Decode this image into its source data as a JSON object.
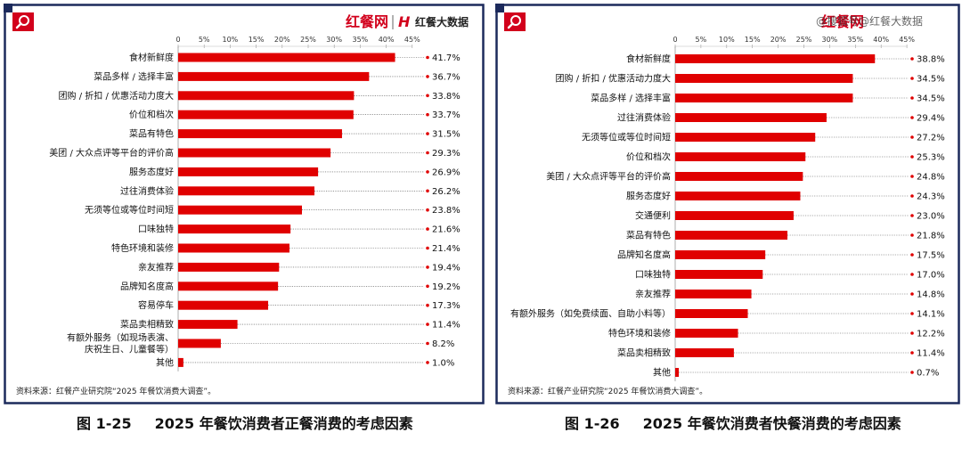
{
  "brand": {
    "logo_text": "红餐网",
    "logo_text2": "红餐大数据",
    "watermark": "@搜狐号@红餐大数据",
    "accent": "#d2001c",
    "frame": "#1c2a5c"
  },
  "captions": [
    {
      "figure": "图 1-25",
      "title": "2025 年餐饮消费者正餐消费的考虑因素"
    },
    {
      "figure": "图 1-26",
      "title": "2025 年餐饮消费者快餐消费的考虑因素"
    }
  ],
  "chart_data": [
    {
      "type": "bar",
      "orientation": "horizontal",
      "categories": [
        "食材新鲜度",
        "菜品多样 / 选择丰富",
        "团购 / 折扣 / 优惠活动力度大",
        "价位和档次",
        "菜品有特色",
        "美团 / 大众点评等平台的评价高",
        "服务态度好",
        "过往消费体验",
        "无须等位或等位时间短",
        "口味独特",
        "特色环境和装修",
        "亲友推荐",
        "品牌知名度高",
        "容易停车",
        "菜品卖相精致",
        [
          "有额外服务（如现场表演、",
          "庆祝生日、儿童餐等）"
        ],
        "其他"
      ],
      "values": [
        41.7,
        36.7,
        33.8,
        33.7,
        31.5,
        29.3,
        26.9,
        26.2,
        23.8,
        21.6,
        21.4,
        19.4,
        19.2,
        17.3,
        11.4,
        8.2,
        1.0
      ],
      "value_labels": [
        "41.7%",
        "36.7%",
        "33.8%",
        "33.7%",
        "31.5%",
        "29.3%",
        "26.9%",
        "26.2%",
        "23.8%",
        "21.6%",
        "21.4%",
        "19.4%",
        "19.2%",
        "17.3%",
        "11.4%",
        "8.2%",
        "1.0%"
      ],
      "xticks": [
        "0",
        "5%",
        "10%",
        "15%",
        "20%",
        "25%",
        "30%",
        "35%",
        "40%",
        "45%"
      ],
      "xlim": [
        0,
        45
      ],
      "axis_position": "top",
      "bar_color": "#e00000",
      "source": "资料来源：红餐产业研究院“2025 年餐饮消费大调查”。"
    },
    {
      "type": "bar",
      "orientation": "horizontal",
      "categories": [
        "食材新鲜度",
        "团购 / 折扣 / 优惠活动力度大",
        "菜品多样 / 选择丰富",
        "过往消费体验",
        "无须等位或等位时间短",
        "价位和档次",
        "美团 / 大众点评等平台的评价高",
        "服务态度好",
        "交通便利",
        "菜品有特色",
        "品牌知名度高",
        "口味独特",
        "亲友推荐",
        "有额外服务（如免费续面、自助小料等）",
        "特色环境和装修",
        "菜品卖相精致",
        "其他"
      ],
      "values": [
        38.8,
        34.5,
        34.5,
        29.4,
        27.2,
        25.3,
        24.8,
        24.3,
        23.0,
        21.8,
        17.5,
        17.0,
        14.8,
        14.1,
        12.2,
        11.4,
        0.7
      ],
      "value_labels": [
        "38.8%",
        "34.5%",
        "34.5%",
        "29.4%",
        "27.2%",
        "25.3%",
        "24.8%",
        "24.3%",
        "23.0%",
        "21.8%",
        "17.5%",
        "17.0%",
        "14.8%",
        "14.1%",
        "12.2%",
        "11.4%",
        "0.7%"
      ],
      "xticks": [
        "0",
        "5%",
        "10%",
        "15%",
        "20%",
        "25%",
        "30%",
        "35%",
        "40%",
        "45%"
      ],
      "xlim": [
        0,
        45
      ],
      "axis_position": "top",
      "bar_color": "#e00000",
      "source": "资料来源：红餐产业研究院“2025 年餐饮消费大调查”。"
    }
  ]
}
